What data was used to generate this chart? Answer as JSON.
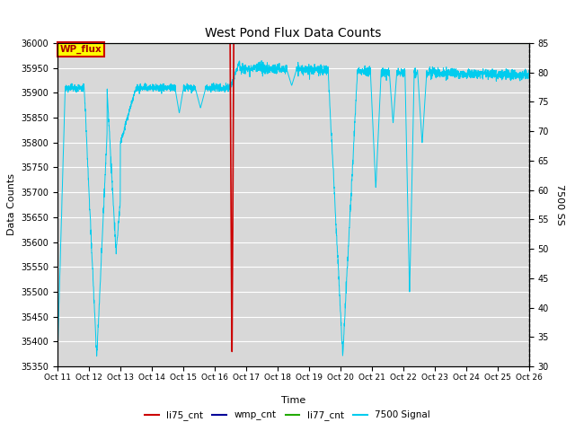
{
  "title": "West Pond Flux Data Counts",
  "xlabel": "Time",
  "ylabel_left": "Data Counts",
  "ylabel_right": "7500 SS",
  "ylim_left": [
    35350,
    36000
  ],
  "ylim_right": [
    30,
    85
  ],
  "background_color": "#ffffff",
  "plot_bg_color": "#d8d8d8",
  "x_tick_labels": [
    "Oct 11",
    "Oct 12",
    "Oct 13",
    "Oct 14",
    "Oct 15",
    "Oct 16",
    "Oct 17",
    "Oct 18",
    "Oct 19",
    "Oct 20",
    "Oct 21",
    "Oct 22",
    "Oct 23",
    "Oct 24",
    "Oct 25",
    "Oct 26"
  ],
  "li75_cnt_color": "#cc0000",
  "wmp_cnt_color": "#000099",
  "li77_cnt_color": "#22aa00",
  "signal_color": "#00ccee",
  "legend_box_facecolor": "#ffff00",
  "legend_box_edgecolor": "#cc0000",
  "wp_flux_text_color": "#aa0000",
  "num_points": 3000
}
